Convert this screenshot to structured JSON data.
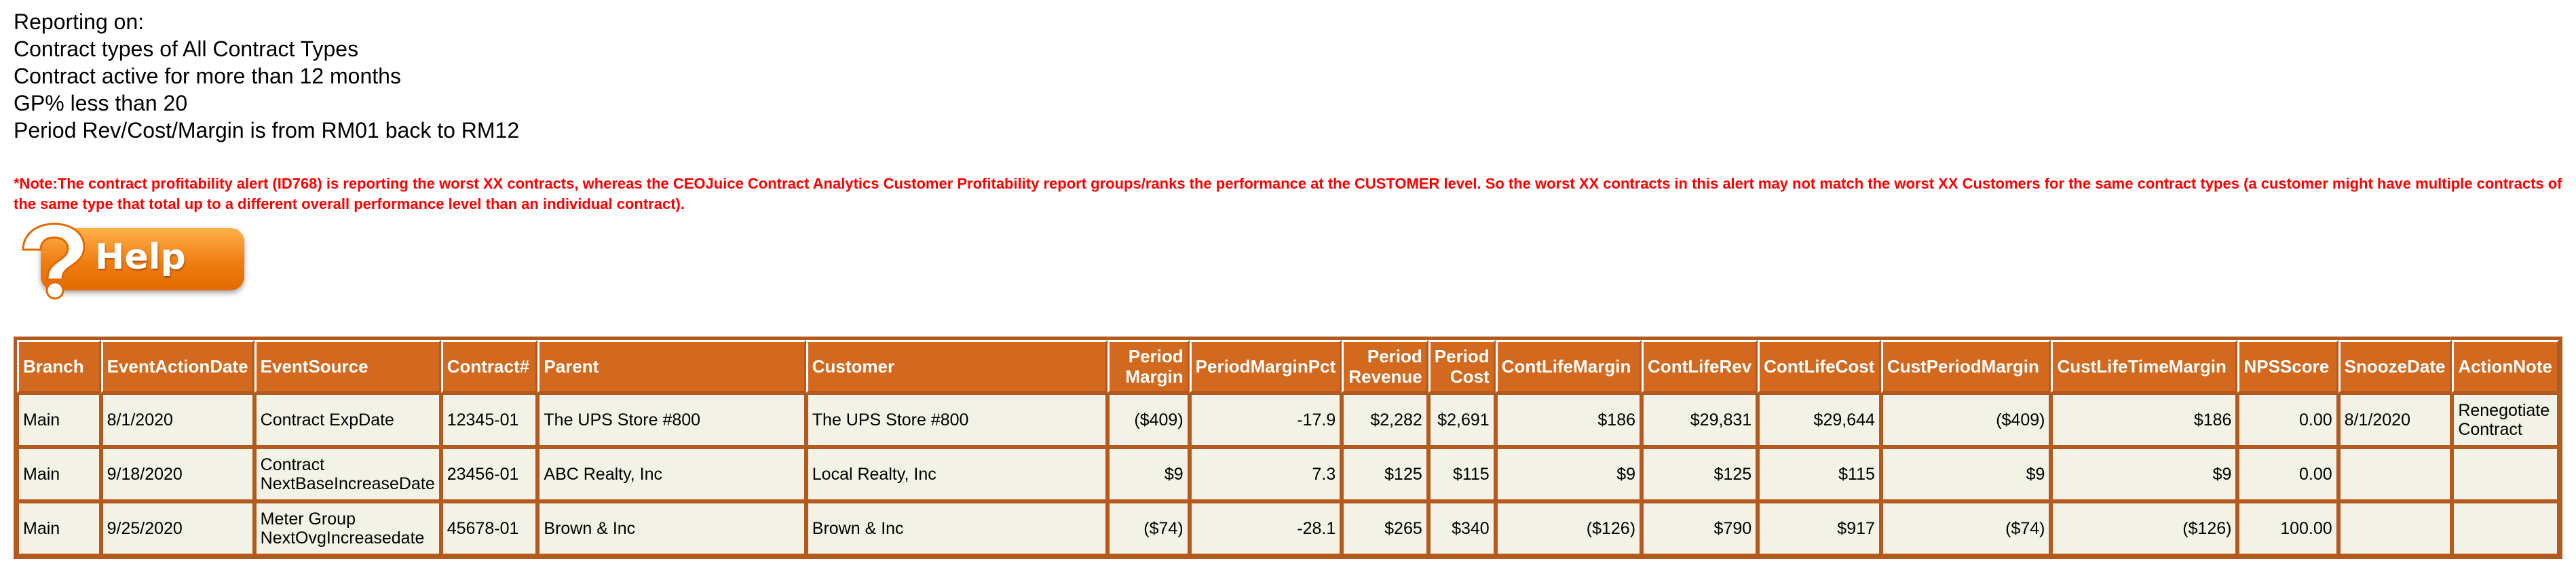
{
  "criteria": {
    "line1": "Reporting on:",
    "line2": "Contract types of All Contract Types",
    "line3": "Contract active for more than 12 months",
    "line4": "GP% less than 20",
    "line5": "Period Rev/Cost/Margin is from RM01 back to RM12"
  },
  "note": "*Note:The contract profitability alert (ID768) is reporting the worst XX contracts, whereas the CEOJuice Contract Analytics Customer Profitability report groups/ranks the performance at the CUSTOMER level. So the worst XX contracts in this alert may not match the worst XX Customers for the same contract types (a customer might have multiple contracts of the same type that total up to a different overall performance level than an individual contract).",
  "help_button": {
    "label": "Help",
    "icon": "question-mark-icon",
    "color": "#f07d12"
  },
  "colors": {
    "header_bg": "#d2691e",
    "border": "#b35a1f",
    "row_bg": "#f2f2e6",
    "note": "#ff0000"
  },
  "table": {
    "headers": [
      "Branch",
      "EventActionDate",
      "EventSource",
      "Contract#",
      "Parent",
      "Customer",
      "Period Margin",
      "PeriodMarginPct",
      "Period Revenue",
      "Period Cost",
      "ContLifeMargin",
      "ContLifeRev",
      "ContLifeCost",
      "CustPeriodMargin",
      "CustLifeTimeMargin",
      "NPSScore",
      "SnoozeDate",
      "ActionNote"
    ],
    "rows": [
      [
        "Main",
        "8/1/2020",
        "Contract ExpDate",
        "12345-01",
        "The UPS Store #800",
        "The UPS Store #800",
        "($409)",
        "-17.9",
        "$2,282",
        "$2,691",
        "$186",
        "$29,831",
        "$29,644",
        "($409)",
        "$186",
        "0.00",
        "8/1/2020",
        "Renegotiate Contract"
      ],
      [
        "Main",
        "9/18/2020",
        "Contract NextBaseIncreaseDate",
        "23456-01",
        "ABC Realty, Inc",
        "Local Realty, Inc",
        "$9",
        "7.3",
        "$125",
        "$115",
        "$9",
        "$125",
        "$115",
        "$9",
        "$9",
        "0.00",
        "",
        ""
      ],
      [
        "Main",
        "9/25/2020",
        "Meter Group NextOvgIncreasedate",
        "45678-01",
        "Brown & Inc",
        "Brown & Inc",
        "($74)",
        "-28.1",
        "$265",
        "$340",
        "($126)",
        "$790",
        "$917",
        "($74)",
        "($126)",
        "100.00",
        "",
        ""
      ]
    ]
  }
}
